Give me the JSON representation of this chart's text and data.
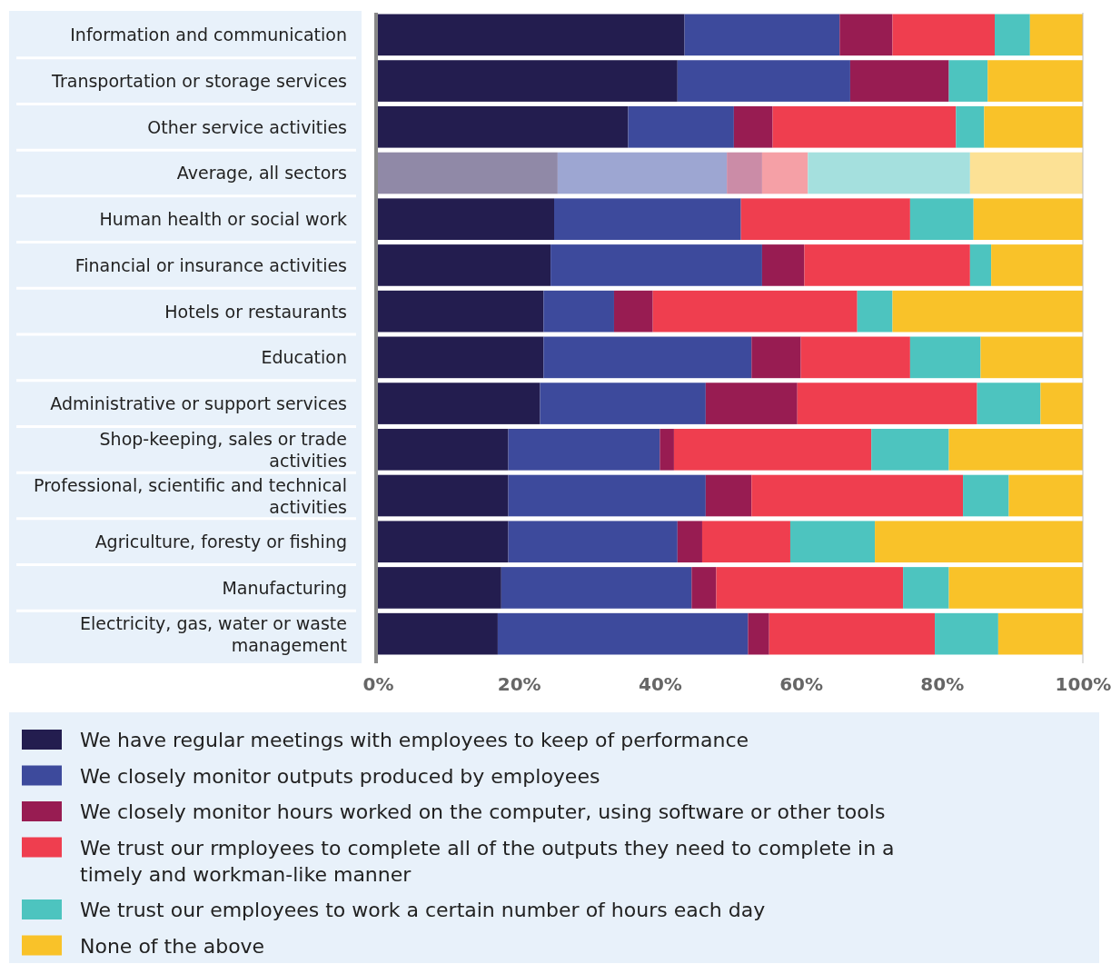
{
  "chart_data": {
    "type": "bar",
    "orientation": "horizontal",
    "stacked": true,
    "legend": "bottom",
    "xlim": [
      0,
      100
    ],
    "xticks": [
      {
        "value": 0,
        "label": "0%"
      },
      {
        "value": 20,
        "label": "20%"
      },
      {
        "value": 40,
        "label": "40%"
      },
      {
        "value": 60,
        "label": "60%"
      },
      {
        "value": 80,
        "label": "80%"
      },
      {
        "value": 100,
        "label": "100%"
      }
    ],
    "categories": [
      "Information and communication",
      "Transportation or storage services",
      "Other service activities",
      "Average, all sectors",
      "Human health or social work",
      "Financial or insurance activities",
      "Hotels or restaurants",
      "Education",
      "Administrative or support services",
      "Shop-keeping, sales or trade activities",
      "Professional, scientific and technical activities",
      "Agriculture, foresty or fishing",
      "Manufacturing",
      "Electricity, gas, water or waste management"
    ],
    "series": [
      {
        "name": "We have regular meetings with employees to keep of performance",
        "color": "#231d4f",
        "colors": [
          "#231d4f",
          "#231d4f",
          "#231d4f",
          "#9089a7",
          "#231d4f",
          "#231d4f",
          "#231d4f",
          "#231d4f",
          "#231d4f",
          "#231d4f",
          "#231d4f",
          "#231d4f",
          "#231d4f",
          "#231d4f"
        ],
        "values": [
          43.5,
          42.5,
          35.5,
          25.5,
          25,
          24.5,
          23.5,
          23.5,
          23,
          18.5,
          18.5,
          18.5,
          17.5,
          17
        ]
      },
      {
        "name": "We closely monitor outputs produced by employees",
        "color": "#3d4a9c",
        "colors": [
          "#3d4a9c",
          "#3d4a9c",
          "#3d4a9c",
          "#9da6d2",
          "#3d4a9c",
          "#3d4a9c",
          "#3d4a9c",
          "#3d4a9c",
          "#3d4a9c",
          "#3d4a9c",
          "#3d4a9c",
          "#3d4a9c",
          "#3d4a9c",
          "#3d4a9c"
        ],
        "values": [
          22,
          24.5,
          15,
          24,
          26.5,
          30,
          10,
          29.5,
          23.5,
          21.5,
          28,
          24,
          27,
          35.5
        ]
      },
      {
        "name": "We closely monitor hours worked on the computer, using software or other tools",
        "color": "#981c52",
        "colors": [
          "#981c52",
          "#981c52",
          "#981c52",
          "#cb8ca7",
          "#981c52",
          "#981c52",
          "#981c52",
          "#981c52",
          "#981c52",
          "#981c52",
          "#981c52",
          "#981c52",
          "#981c52",
          "#981c52"
        ],
        "values": [
          7.5,
          14,
          5.5,
          5,
          0,
          6,
          5.5,
          7,
          13,
          2,
          6.5,
          3.5,
          3.5,
          3
        ]
      },
      {
        "name": "We trust our rmployees to complete all of the outputs they need to complete in a timely and workman-like manner",
        "color": "#ef3e4f",
        "colors": [
          "#ef3e4f",
          "#ef3e4f",
          "#ef3e4f",
          "#f5a0a6",
          "#ef3e4f",
          "#ef3e4f",
          "#ef3e4f",
          "#ef3e4f",
          "#ef3e4f",
          "#ef3e4f",
          "#ef3e4f",
          "#ef3e4f",
          "#ef3e4f",
          "#ef3e4f"
        ],
        "values": [
          14.5,
          0,
          26,
          6.5,
          24,
          23.5,
          29,
          15.5,
          25.5,
          28,
          30,
          12.5,
          26.5,
          23.5
        ]
      },
      {
        "name": "We trust our employees to work a certain number of hours each day",
        "color": "#4dc4bf",
        "colors": [
          "#4dc4bf",
          "#4dc4bf",
          "#4dc4bf",
          "#a5e0de",
          "#4dc4bf",
          "#4dc4bf",
          "#4dc4bf",
          "#4dc4bf",
          "#4dc4bf",
          "#4dc4bf",
          "#4dc4bf",
          "#4dc4bf",
          "#4dc4bf",
          "#4dc4bf"
        ],
        "values": [
          5,
          5.5,
          4,
          23,
          9,
          3,
          5,
          10,
          9,
          11,
          6.5,
          12,
          6.5,
          9
        ]
      },
      {
        "name": "None of the above",
        "color": "#f9c229",
        "colors": [
          "#f9c229",
          "#f9c229",
          "#f9c229",
          "#fce195",
          "#f9c229",
          "#f9c229",
          "#f9c229",
          "#f9c229",
          "#f9c229",
          "#f9c229",
          "#f9c229",
          "#f9c229",
          "#f9c229",
          "#f9c229"
        ],
        "values": [
          7.5,
          13.5,
          14,
          16,
          15.5,
          13,
          27,
          14.5,
          6,
          19,
          10.5,
          29.5,
          19,
          12
        ]
      }
    ]
  }
}
